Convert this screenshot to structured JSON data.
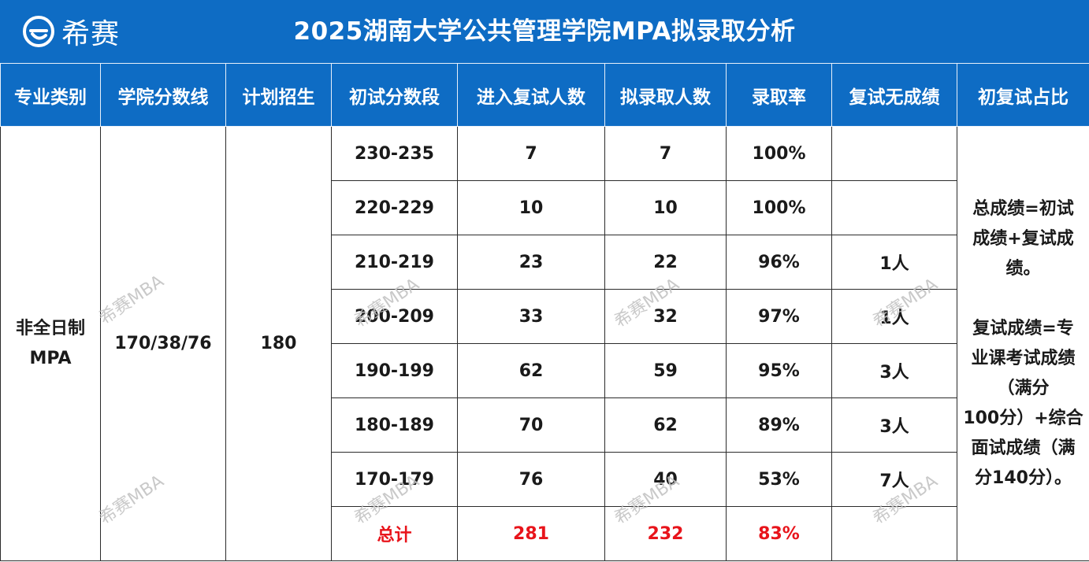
{
  "header": {
    "logo_text": "希赛",
    "title": "2025湖南大学公共管理学院MPA拟录取分析",
    "bg_color": "#0e6cc4"
  },
  "table": {
    "columns": [
      "专业类别",
      "学院分数线",
      "计划招生",
      "初试分数段",
      "进入复试人数",
      "拟录取人数",
      "录取率",
      "复试无成绩",
      "初复试占比"
    ],
    "major_line1": "非全日制",
    "major_line2": "MPA",
    "cutoff": "170/38/76",
    "plan": "180",
    "rows": [
      {
        "range": "230-235",
        "entered": "7",
        "admitted": "7",
        "rate": "100%",
        "no_score": ""
      },
      {
        "range": "220-229",
        "entered": "10",
        "admitted": "10",
        "rate": "100%",
        "no_score": ""
      },
      {
        "range": "210-219",
        "entered": "23",
        "admitted": "22",
        "rate": "96%",
        "no_score": "1人"
      },
      {
        "range": "200-209",
        "entered": "33",
        "admitted": "32",
        "rate": "97%",
        "no_score": "1人"
      },
      {
        "range": "190-199",
        "entered": "62",
        "admitted": "59",
        "rate": "95%",
        "no_score": "3人"
      },
      {
        "range": "180-189",
        "entered": "70",
        "admitted": "62",
        "rate": "89%",
        "no_score": "3人"
      },
      {
        "range": "170-179",
        "entered": "76",
        "admitted": "40",
        "rate": "53%",
        "no_score": "7人"
      }
    ],
    "total": {
      "label": "总计",
      "entered": "281",
      "admitted": "232",
      "rate": "83%",
      "color": "#e8141b"
    },
    "note_lines": [
      "总成绩=初试",
      "成绩+复试成",
      "绩。",
      "",
      "复试成绩=专",
      "业课考试成绩",
      "（满分",
      "100分）+综合",
      "面试成绩（满",
      "分140分）。"
    ]
  },
  "watermark_text": "希赛MBA"
}
